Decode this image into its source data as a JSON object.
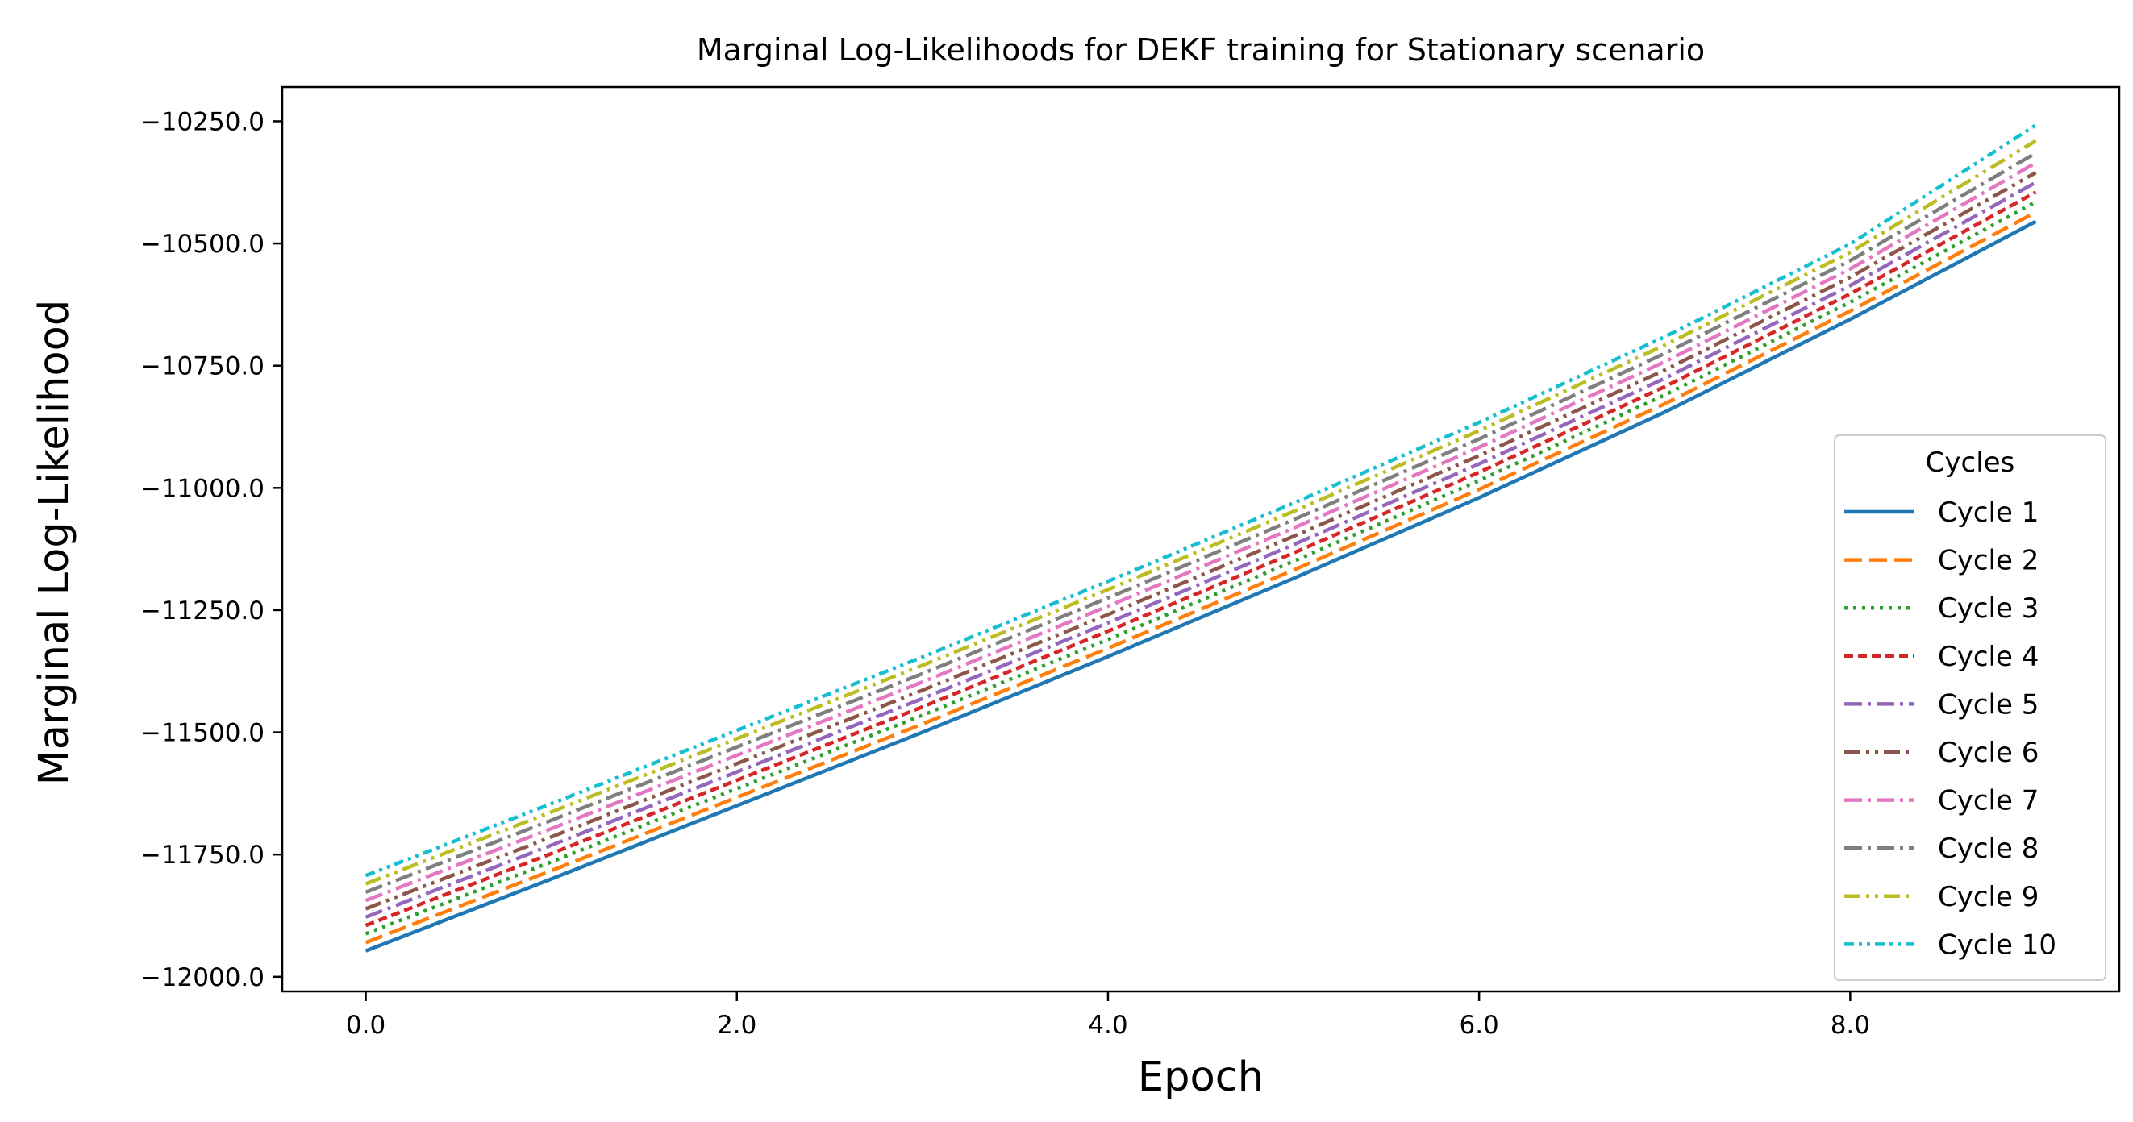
{
  "chart_data": {
    "type": "line",
    "title": "Marginal Log-Likelihoods for DEKF training for Stationary scenario",
    "xlabel": "Epoch",
    "ylabel": "Marginal Log-Likelihood",
    "xlim": [
      -0.45,
      9.45
    ],
    "ylim": [
      -12030,
      -10180
    ],
    "xticks": [
      0,
      2,
      4,
      6,
      8
    ],
    "xtick_labels": [
      "0.0",
      "2.0",
      "4.0",
      "6.0",
      "8.0"
    ],
    "yticks": [
      -10250,
      -10500,
      -10750,
      -11000,
      -11250,
      -11500,
      -11750,
      -12000
    ],
    "ytick_labels": [
      "−10250.0",
      "−10500.0",
      "−10750.0",
      "−11000.0",
      "−11250.0",
      "−11500.0",
      "−11750.0",
      "−12000.0"
    ],
    "grid": false,
    "legend": {
      "title": "Cycles",
      "placement": "center-right"
    },
    "x": [
      0,
      1,
      2,
      3,
      4,
      5,
      6,
      7,
      8,
      9
    ],
    "series": [
      {
        "name": "Cycle 1",
        "color": "#1f77b4",
        "dash": "solid",
        "values": [
          -11947,
          -11800,
          -11650,
          -11500,
          -11345,
          -11185,
          -11020,
          -10845,
          -10655,
          -10455
        ]
      },
      {
        "name": "Cycle 2",
        "color": "#ff7f0e",
        "dash": "dashed",
        "values": [
          -11930,
          -11783,
          -11633,
          -11483,
          -11328,
          -11168,
          -11003,
          -10828,
          -10638,
          -10436
        ]
      },
      {
        "name": "Cycle 3",
        "color": "#2ca02c",
        "dash": "dotted",
        "values": [
          -11912,
          -11765,
          -11615,
          -11465,
          -11310,
          -11150,
          -10985,
          -10810,
          -10620,
          -10415
        ]
      },
      {
        "name": "Cycle 4",
        "color": "#d62728",
        "dash": "densely-dashed",
        "values": [
          -11895,
          -11748,
          -11598,
          -11448,
          -11293,
          -11133,
          -10968,
          -10793,
          -10603,
          -10395
        ]
      },
      {
        "name": "Cycle 5",
        "color": "#9467bd",
        "dash": "dash-dot",
        "values": [
          -11878,
          -11731,
          -11581,
          -11431,
          -11276,
          -11116,
          -10951,
          -10776,
          -10586,
          -10375
        ]
      },
      {
        "name": "Cycle 6",
        "color": "#8c564b",
        "dash": "dash-dot-dot",
        "values": [
          -11861,
          -11714,
          -11564,
          -11414,
          -11259,
          -11099,
          -10934,
          -10759,
          -10569,
          -10355
        ]
      },
      {
        "name": "Cycle 7",
        "color": "#e377c2",
        "dash": "dash-dot",
        "values": [
          -11844,
          -11697,
          -11547,
          -11397,
          -11242,
          -11082,
          -10917,
          -10742,
          -10552,
          -10335
        ]
      },
      {
        "name": "Cycle 8",
        "color": "#7f7f7f",
        "dash": "dash-dot",
        "values": [
          -11827,
          -11680,
          -11530,
          -11380,
          -11225,
          -11065,
          -10900,
          -10725,
          -10535,
          -10315
        ]
      },
      {
        "name": "Cycle 9",
        "color": "#bcbd22",
        "dash": "dash-dot-dot",
        "values": [
          -11810,
          -11663,
          -11513,
          -11363,
          -11208,
          -11048,
          -10883,
          -10708,
          -10518,
          -10290
        ]
      },
      {
        "name": "Cycle 10",
        "color": "#17becf",
        "dash": "dash-dot-dot-tight",
        "values": [
          -11793,
          -11646,
          -11496,
          -11346,
          -11191,
          -11031,
          -10866,
          -10691,
          -10501,
          -10258
        ]
      }
    ]
  }
}
